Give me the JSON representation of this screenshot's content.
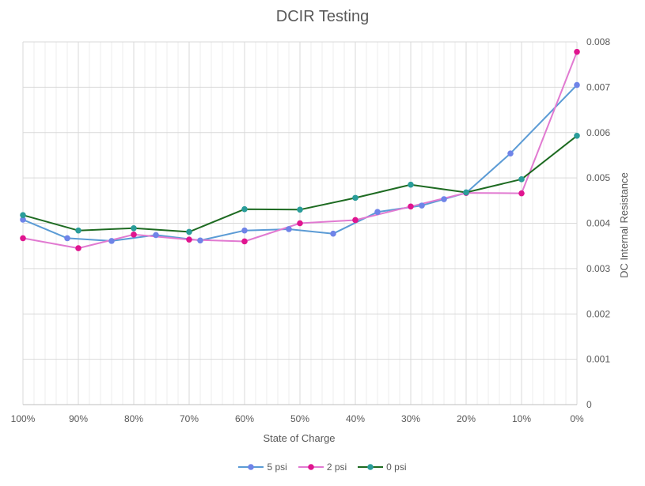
{
  "chart_data": {
    "type": "line",
    "title": "DCIR Testing",
    "xlabel": "State of Charge",
    "ylabel": "DC Internal Resistance",
    "x_reversed": true,
    "xlim": [
      0,
      100
    ],
    "ylim": [
      0,
      0.008
    ],
    "x_ticks": [
      100,
      90,
      80,
      70,
      60,
      50,
      40,
      30,
      20,
      10,
      0
    ],
    "x_tick_labels": [
      "100%",
      "90%",
      "80%",
      "70%",
      "60%",
      "50%",
      "40%",
      "30%",
      "20%",
      "10%",
      "0%"
    ],
    "y_ticks": [
      0,
      0.001,
      0.002,
      0.003,
      0.004,
      0.005,
      0.006,
      0.007,
      0.008
    ],
    "y_tick_labels": [
      "0",
      "0.001",
      "0.002",
      "0.003",
      "0.004",
      "0.005",
      "0.006",
      "0.007",
      "0.008"
    ],
    "grid": true,
    "legend": "bottom",
    "series": [
      {
        "name": "5 psi",
        "color": "#5b9bd5",
        "marker_color": "#6f84e8",
        "points": [
          [
            100,
            0.00408
          ],
          [
            92,
            0.00367
          ],
          [
            84,
            0.00361
          ],
          [
            76,
            0.00374
          ],
          [
            68,
            0.00362
          ],
          [
            60,
            0.00384
          ],
          [
            52,
            0.00387
          ],
          [
            44,
            0.00377
          ],
          [
            36,
            0.00425
          ],
          [
            28,
            0.00439
          ],
          [
            24,
            0.00453
          ],
          [
            20,
            0.00467
          ],
          [
            12,
            0.00554
          ],
          [
            0,
            0.00705
          ]
        ]
      },
      {
        "name": "2 psi",
        "color": "#e17ad1",
        "marker_color": "#e0158f",
        "points": [
          [
            100,
            0.00367
          ],
          [
            90,
            0.00345
          ],
          [
            80,
            0.00375
          ],
          [
            70,
            0.00364
          ],
          [
            60,
            0.0036
          ],
          [
            50,
            0.004
          ],
          [
            40,
            0.00407
          ],
          [
            30,
            0.00437
          ],
          [
            20,
            0.00467
          ],
          [
            10,
            0.00466
          ],
          [
            0,
            0.00778
          ]
        ]
      },
      {
        "name": "0 psi",
        "color": "#1e6b22",
        "marker_color": "#2a9d9a",
        "points": [
          [
            100,
            0.00418
          ],
          [
            90,
            0.00384
          ],
          [
            80,
            0.00389
          ],
          [
            70,
            0.00381
          ],
          [
            60,
            0.00431
          ],
          [
            50,
            0.0043
          ],
          [
            40,
            0.00456
          ],
          [
            30,
            0.00485
          ],
          [
            20,
            0.00468
          ],
          [
            10,
            0.00497
          ],
          [
            0,
            0.00593
          ]
        ]
      }
    ]
  }
}
